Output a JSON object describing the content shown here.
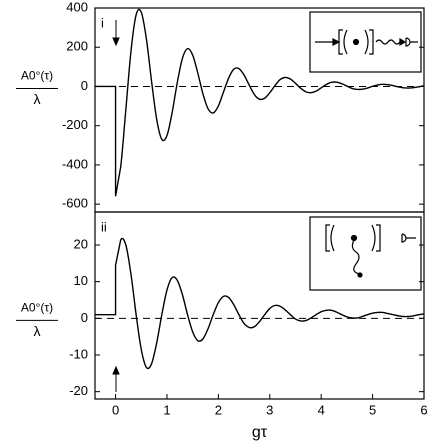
{
  "chart_data": [
    {
      "type": "line",
      "panel_label": "i",
      "ylabel": "A0°(τ)",
      "ylabel_denominator": "λ",
      "xlim": [
        -0.4,
        6
      ],
      "ylim": [
        -640,
        400
      ],
      "yticks": [
        -600,
        -400,
        -200,
        0,
        200,
        400
      ],
      "hline": 0,
      "series": [
        {
          "color": "#000000",
          "x": [
            -0.4,
            0,
            0,
            0.1,
            0.2,
            0.3,
            0.4,
            0.5,
            0.6,
            0.7,
            0.8,
            0.9,
            1.0,
            1.1,
            1.2,
            1.3,
            1.4,
            1.5,
            1.6,
            1.7,
            1.8,
            1.9,
            2.0,
            2.1,
            2.2,
            2.3,
            2.4,
            2.5,
            2.6,
            2.7,
            2.8,
            2.9,
            3.0,
            3.1,
            3.2,
            3.3,
            3.4,
            3.5,
            3.6,
            3.7,
            3.8,
            3.9,
            4.0,
            4.1,
            4.2,
            4.3,
            4.4,
            4.5,
            4.6,
            4.7,
            4.8,
            4.9,
            5.0,
            5.1,
            5.2,
            5.3,
            5.4,
            5.5,
            5.6,
            5.7,
            5.8,
            5.9,
            6.0
          ],
          "values": [
            0,
            0,
            -560,
            -410,
            -118,
            180,
            365,
            379,
            242,
            27,
            -168,
            -270,
            -250,
            -134,
            19,
            143,
            193,
            160,
            68,
            -38,
            -114,
            -135,
            -99,
            -28,
            43,
            88,
            91,
            58,
            7,
            -41,
            -65,
            -60,
            -32,
            4,
            35,
            46,
            38,
            16,
            -9,
            -27,
            -32,
            -24,
            -7,
            10,
            21,
            22,
            14,
            2,
            -10,
            -15,
            -14,
            -8,
            1,
            8,
            11,
            9,
            4,
            -2,
            -7,
            -8,
            -6,
            -2,
            3
          ]
        }
      ]
    },
    {
      "type": "line",
      "panel_label": "ii",
      "ylabel": "A0°(τ)",
      "ylabel_denominator": "λ",
      "xlabel": "gτ",
      "xlim": [
        -0.4,
        6
      ],
      "ylim": [
        -22,
        29
      ],
      "xticks": [
        0,
        1,
        2,
        3,
        4,
        5,
        6
      ],
      "yticks": [
        -20,
        -10,
        0,
        10,
        20
      ],
      "hline": 0,
      "series": [
        {
          "color": "#000000",
          "x": [
            -0.4,
            0,
            0,
            0.1,
            0.2,
            0.3,
            0.4,
            0.5,
            0.6,
            0.7,
            0.8,
            0.9,
            1.0,
            1.1,
            1.2,
            1.3,
            1.4,
            1.5,
            1.6,
            1.7,
            1.8,
            1.9,
            2.0,
            2.1,
            2.2,
            2.3,
            2.4,
            2.5,
            2.6,
            2.7,
            2.8,
            2.9,
            3.0,
            3.1,
            3.2,
            3.3,
            3.4,
            3.5,
            3.6,
            3.7,
            3.8,
            3.9,
            4.0,
            4.1,
            4.2,
            4.3,
            4.4,
            4.5,
            4.6,
            4.7,
            4.8,
            4.9,
            5.0,
            5.1,
            5.2,
            5.3,
            5.4,
            5.5,
            5.6,
            5.7,
            5.8,
            5.9,
            6.0
          ],
          "values": [
            1,
            1,
            14.5,
            21.4,
            20.0,
            12.0,
            1.0,
            -8.5,
            -13.4,
            -12.4,
            -6.7,
            1.0,
            7.7,
            11.1,
            10.4,
            6.5,
            1.0,
            -3.7,
            -6.1,
            -5.6,
            -2.8,
            1.0,
            4.3,
            6.0,
            5.7,
            3.7,
            1.0,
            -1.4,
            -2.5,
            -2.3,
            -0.9,
            1.0,
            2.7,
            3.5,
            3.3,
            2.3,
            1.0,
            -0.2,
            -0.7,
            -0.6,
            0.1,
            1.0,
            1.8,
            2.2,
            2.2,
            1.7,
            1.0,
            0.4,
            0.1,
            0.1,
            0.5,
            1.0,
            1.4,
            1.6,
            1.6,
            1.3,
            1.0,
            0.7,
            0.5,
            0.5,
            0.7,
            1.0,
            1.2
          ]
        }
      ]
    }
  ]
}
